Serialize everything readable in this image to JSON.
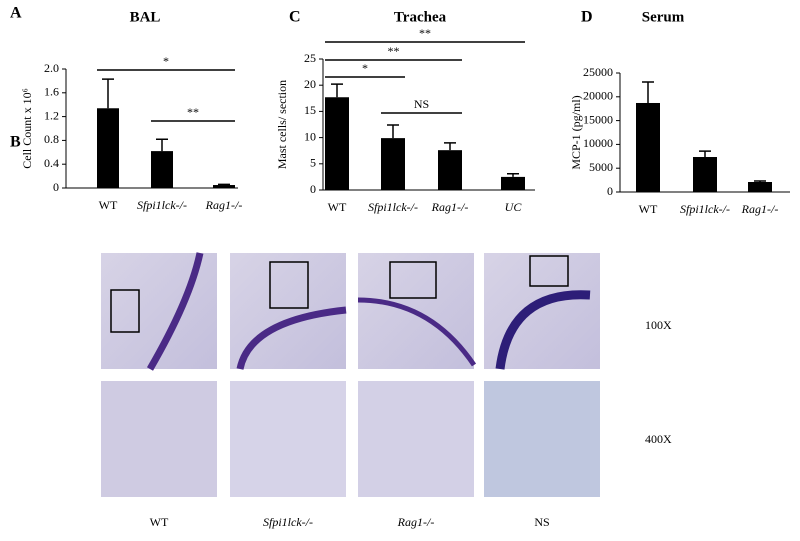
{
  "panels": [
    "A",
    "B",
    "C",
    "D"
  ],
  "chart_data": [
    {
      "type": "bar",
      "title": "BAL",
      "y_label": "Cell Count x 10⁶",
      "categories": [
        "WT",
        "Sfpi1lck-/-",
        "Rag1-/-"
      ],
      "values": [
        1.34,
        0.62,
        0.05
      ],
      "errors": [
        0.49,
        0.2,
        0.01
      ],
      "color": "#000000",
      "ylim": [
        0,
        2
      ],
      "yticks": [
        0,
        0.4,
        0.8,
        1.2,
        1.6,
        {
          "value": 2,
          "label": "2.0"
        }
      ],
      "annotations": [
        {
          "label": "*",
          "from": 0,
          "to": 2
        },
        {
          "label": "**",
          "from": 1,
          "to": 2
        }
      ]
    },
    {
      "type": "bar",
      "title": "Trachea",
      "y_label": "Mast cells/ section",
      "categories": [
        "WT",
        "Sfpi1lck-/-",
        "Rag1-/-",
        "UC"
      ],
      "values": [
        17.7,
        9.9,
        7.6,
        2.5
      ],
      "errors": [
        2.5,
        2.5,
        1.4,
        0.6
      ],
      "color": "#000000",
      "ylim": [
        0,
        25
      ],
      "yticks": [
        0,
        5,
        10,
        15,
        20,
        25
      ],
      "annotations": [
        {
          "label": "**",
          "from": 0,
          "to": 3
        },
        {
          "label": "**",
          "from": 0,
          "to": 2
        },
        {
          "label": "*",
          "from": 0,
          "to": 1
        },
        {
          "label": "NS",
          "from": 1,
          "to": 2
        }
      ]
    },
    {
      "type": "bar",
      "title": "Serum",
      "y_label": "MCP-1 (pg/ml)",
      "categories": [
        "WT",
        "Sfpi1lck-/-",
        "Rag1-/-"
      ],
      "values": [
        18700,
        7350,
        2100
      ],
      "errors": [
        4400,
        1250,
        200
      ],
      "color": "#000000",
      "ylim": [
        0,
        25000
      ],
      "yticks": [
        0,
        5000,
        10000,
        15000,
        20000,
        25000
      ],
      "annotations": []
    }
  ],
  "micrographs": {
    "columns": [
      "WT",
      "Sfpi1lck-/-",
      "Rag1-/-",
      "NS"
    ],
    "rows": [
      "100X",
      "400X"
    ]
  }
}
